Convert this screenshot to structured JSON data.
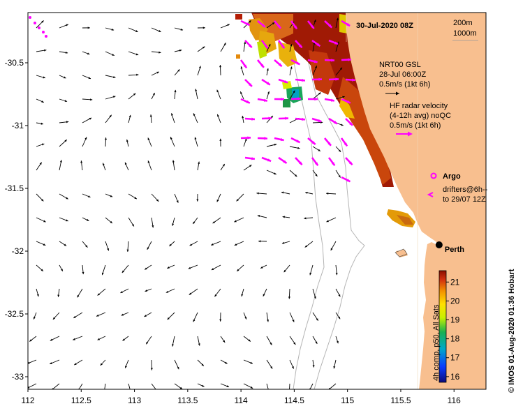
{
  "map": {
    "date_title": "30-Jul-2020 08Z",
    "depth_labels": [
      "200m",
      "1000m"
    ],
    "x_ticks": [
      "112",
      "112.5",
      "113",
      "113.5",
      "114",
      "114.5",
      "115",
      "115.5",
      "116"
    ],
    "y_ticks": [
      "-30.5",
      "-31",
      "-31.5",
      "-32",
      "-32.5",
      "-33"
    ],
    "x_tick_values": [
      112,
      112.5,
      113,
      113.5,
      114,
      114.5,
      115,
      115.5,
      116
    ],
    "y_tick_values": [
      -30.5,
      -31,
      -31.5,
      -32,
      -32.5,
      -33
    ],
    "lon_range": [
      112,
      116.3
    ],
    "lat_range": [
      -33.1,
      -30.1
    ],
    "city_label": "Perth",
    "city_lat": -31.95,
    "city_lon": 115.86,
    "credit": "© IMOS 01-Aug-2020 01:36 Hobart"
  },
  "legend": {
    "gsl_lines": [
      "NRT00 GSL",
      "28-Jul 06:00Z",
      "0.5m/s (1kt 6h)"
    ],
    "hf_lines": [
      "HF radar velocity",
      "(4-12h avg) noQC",
      "0.5m/s (1kt 6h)"
    ],
    "argo_label": "Argo",
    "drifter_lines": [
      "drifters@6h--",
      "to 29/07 12Z"
    ]
  },
  "colorbar": {
    "title": "4h comp, p50, All Sats",
    "ticks": [
      "16",
      "17",
      "18",
      "19",
      "20",
      "21"
    ],
    "tick_values": [
      16,
      17,
      18,
      19,
      20,
      21
    ],
    "min": 15.7,
    "max": 21.6
  },
  "colors": {
    "land": "#f8bf8f",
    "vector_gsl": "#000000",
    "vector_hf": "#ff00ff",
    "contour": "#b4b4b4",
    "city_dot": "#000000"
  }
}
